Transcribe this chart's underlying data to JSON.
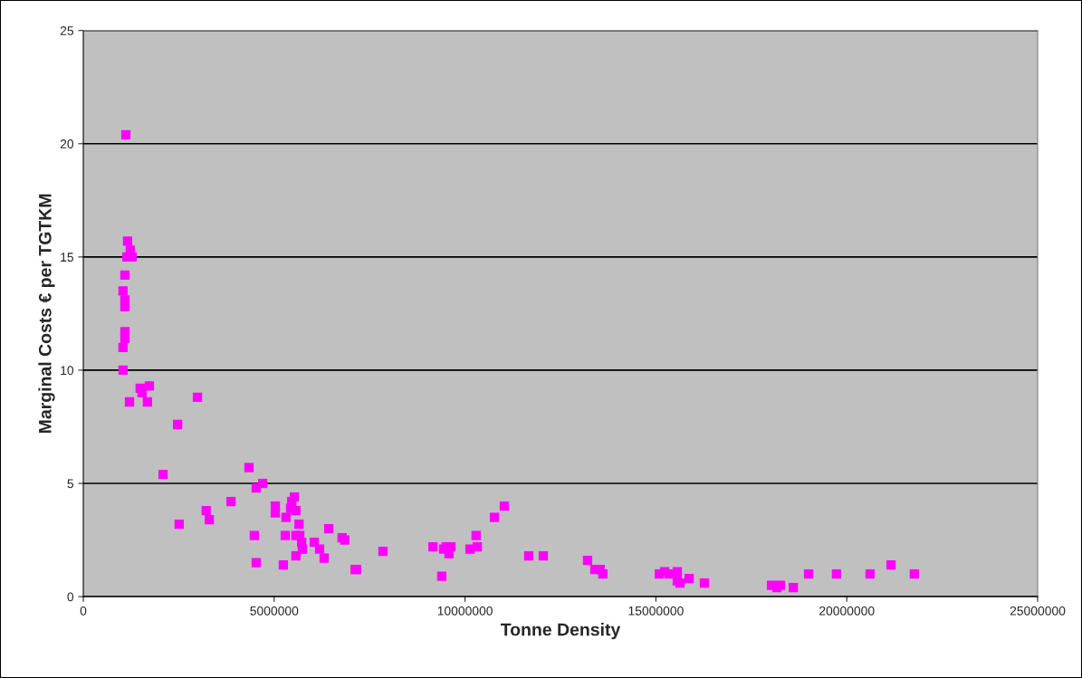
{
  "chart_data": {
    "type": "scatter",
    "xlabel": "Tonne Density",
    "ylabel": "Marginal Costs € per TGTKM",
    "xlim": [
      0,
      25000000
    ],
    "xticks": [
      0,
      5000000,
      10000000,
      15000000,
      20000000,
      25000000
    ],
    "ylim": [
      0,
      25
    ],
    "yticks": [
      0,
      5,
      10,
      15,
      20,
      25
    ],
    "grid": "y",
    "marker": "square",
    "series": [
      {
        "color": "#ff00ff",
        "x": [
          1115000,
          1160000,
          1230000,
          1280000,
          1140000,
          1090000,
          1040000,
          1090000,
          1090000,
          1090000,
          1090000,
          1040000,
          1040000,
          1490000,
          1540000,
          1730000,
          1210000,
          1680000,
          2990000,
          2470000,
          2090000,
          2510000,
          3220000,
          3300000,
          3870000,
          4340000,
          4700000,
          4530000,
          4480000,
          4530000,
          5030000,
          5030000,
          5310000,
          5290000,
          5240000,
          5530000,
          5460000,
          5430000,
          5570000,
          5650000,
          5670000,
          5720000,
          5740000,
          5570000,
          5570000,
          6050000,
          6190000,
          6310000,
          6430000,
          6780000,
          6850000,
          7120000,
          7160000,
          7850000,
          9160000,
          9390000,
          9510000,
          9440000,
          9630000,
          9580000,
          10130000,
          10290000,
          10320000,
          10770000,
          11030000,
          11670000,
          12050000,
          13210000,
          13400000,
          13540000,
          13610000,
          15090000,
          15230000,
          15350000,
          15560000,
          15560000,
          15630000,
          15870000,
          16270000,
          18030000,
          18170000,
          18260000,
          18600000,
          19000000,
          19730000,
          20610000,
          21160000,
          21770000
        ],
        "values": [
          20.4,
          15.7,
          15.3,
          15.0,
          15.0,
          14.2,
          13.5,
          13.1,
          12.8,
          11.7,
          11.4,
          11.0,
          10.0,
          9.2,
          9.0,
          9.3,
          8.6,
          8.6,
          8.8,
          7.6,
          5.4,
          3.2,
          3.8,
          3.4,
          4.2,
          5.7,
          5.0,
          4.8,
          2.7,
          1.5,
          4.0,
          3.7,
          3.5,
          2.7,
          1.4,
          4.4,
          4.2,
          3.9,
          3.8,
          3.2,
          2.7,
          2.4,
          2.1,
          1.8,
          2.7,
          2.4,
          2.1,
          1.7,
          3.0,
          2.6,
          2.5,
          1.2,
          1.2,
          2.0,
          2.2,
          0.9,
          2.2,
          2.1,
          2.2,
          1.9,
          2.1,
          2.7,
          2.2,
          3.5,
          4.0,
          1.8,
          1.8,
          1.6,
          1.2,
          1.2,
          1.0,
          1.0,
          1.1,
          1.0,
          1.1,
          0.7,
          0.6,
          0.8,
          0.6,
          0.5,
          0.4,
          0.5,
          0.4,
          1.0,
          1.0,
          1.0,
          1.4,
          1.0
        ]
      }
    ]
  }
}
